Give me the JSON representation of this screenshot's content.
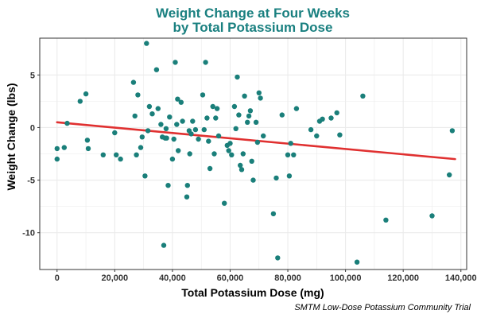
{
  "chart_data": {
    "type": "scatter",
    "title_line1": "Weight Change at Four Weeks",
    "title_line2": "by Total Potassium Dose",
    "xlabel": "Total Potassium Dose (mg)",
    "ylabel": "Weight Change (lbs)",
    "caption": "SMTM Low-Dose Potassium Community Trial",
    "xlim": [
      -6000,
      142000
    ],
    "ylim": [
      -13.5,
      8.5
    ],
    "x_ticks": [
      0,
      20000,
      40000,
      60000,
      80000,
      100000,
      120000,
      140000
    ],
    "x_tick_labels": [
      "0",
      "20,000",
      "40,000",
      "60,000",
      "80,000",
      "100,000",
      "120,000",
      "140,000"
    ],
    "y_ticks": [
      -10,
      -5,
      0,
      5
    ],
    "y_tick_labels": [
      "-10",
      "-5",
      "0",
      "5"
    ],
    "grid": true,
    "colors": {
      "title": "#1a8080",
      "points": "#1a7f7a",
      "trend_line": "#e03030",
      "grid": "#ebebeb",
      "panel_border": "#333333"
    },
    "trend_line": {
      "x": [
        0,
        138000
      ],
      "y": [
        0.5,
        -3.0
      ]
    },
    "points": [
      [
        0,
        -3.0
      ],
      [
        0,
        -2.0
      ],
      [
        2500,
        -1.9
      ],
      [
        3500,
        0.4
      ],
      [
        8000,
        2.5
      ],
      [
        10000,
        3.2
      ],
      [
        10500,
        -1.2
      ],
      [
        10800,
        -2.0
      ],
      [
        16000,
        -2.6
      ],
      [
        20000,
        -0.5
      ],
      [
        20500,
        -2.6
      ],
      [
        22000,
        -3.0
      ],
      [
        26500,
        4.3
      ],
      [
        27000,
        1.1
      ],
      [
        27500,
        -2.6
      ],
      [
        28000,
        3.1
      ],
      [
        29000,
        -1.9
      ],
      [
        29500,
        -0.9
      ],
      [
        30500,
        -4.6
      ],
      [
        31000,
        8.0
      ],
      [
        31500,
        -0.3
      ],
      [
        32000,
        2.0
      ],
      [
        33000,
        1.3
      ],
      [
        34500,
        5.5
      ],
      [
        35000,
        1.8
      ],
      [
        36000,
        0.3
      ],
      [
        36500,
        -0.9
      ],
      [
        37500,
        -1.0
      ],
      [
        37000,
        -11.2
      ],
      [
        37800,
        -0.1
      ],
      [
        38000,
        -1.0
      ],
      [
        38500,
        -5.5
      ],
      [
        39000,
        1.0
      ],
      [
        40000,
        -3.0
      ],
      [
        40500,
        -1.1
      ],
      [
        41000,
        6.2
      ],
      [
        41500,
        0.3
      ],
      [
        41800,
        2.7
      ],
      [
        42000,
        -2.2
      ],
      [
        43000,
        2.4
      ],
      [
        43500,
        0.6
      ],
      [
        45000,
        -6.6
      ],
      [
        45200,
        -5.5
      ],
      [
        45800,
        -0.3
      ],
      [
        46000,
        -2.5
      ],
      [
        46500,
        -0.6
      ],
      [
        47000,
        0.6
      ],
      [
        48000,
        -0.2
      ],
      [
        49000,
        -1.1
      ],
      [
        50500,
        3.1
      ],
      [
        51000,
        -0.2
      ],
      [
        51500,
        6.2
      ],
      [
        52000,
        0.9
      ],
      [
        52500,
        -1.3
      ],
      [
        53000,
        -3.9
      ],
      [
        54000,
        2.0
      ],
      [
        54500,
        -2.5
      ],
      [
        55000,
        0.9
      ],
      [
        55500,
        1.8
      ],
      [
        56000,
        -0.8
      ],
      [
        58000,
        -7.2
      ],
      [
        59000,
        -1.7
      ],
      [
        59500,
        -2.2
      ],
      [
        60000,
        -1.5
      ],
      [
        60500,
        -2.6
      ],
      [
        61500,
        2.0
      ],
      [
        62000,
        -0.1
      ],
      [
        62500,
        4.8
      ],
      [
        63000,
        1.2
      ],
      [
        63500,
        -3.6
      ],
      [
        64000,
        -4.0
      ],
      [
        64500,
        -2.5
      ],
      [
        65000,
        3.0
      ],
      [
        66000,
        0.5
      ],
      [
        66500,
        1.1
      ],
      [
        67000,
        1.6
      ],
      [
        67500,
        -3.2
      ],
      [
        68000,
        -5.0
      ],
      [
        69000,
        0.5
      ],
      [
        69500,
        -1.4
      ],
      [
        70000,
        3.3
      ],
      [
        70500,
        2.8
      ],
      [
        71500,
        -0.8
      ],
      [
        75000,
        -8.2
      ],
      [
        76000,
        -4.8
      ],
      [
        76500,
        -12.4
      ],
      [
        78000,
        1.2
      ],
      [
        80000,
        -2.6
      ],
      [
        80500,
        -4.6
      ],
      [
        81000,
        -1.5
      ],
      [
        82000,
        -2.6
      ],
      [
        83000,
        1.8
      ],
      [
        88000,
        -0.2
      ],
      [
        90000,
        -0.8
      ],
      [
        91000,
        0.6
      ],
      [
        92000,
        0.8
      ],
      [
        95000,
        0.9
      ],
      [
        97000,
        1.4
      ],
      [
        98000,
        -0.7
      ],
      [
        104000,
        -12.8
      ],
      [
        106000,
        3.0
      ],
      [
        114000,
        -8.8
      ],
      [
        130000,
        -8.4
      ],
      [
        136000,
        -4.5
      ],
      [
        137000,
        -0.3
      ]
    ]
  }
}
